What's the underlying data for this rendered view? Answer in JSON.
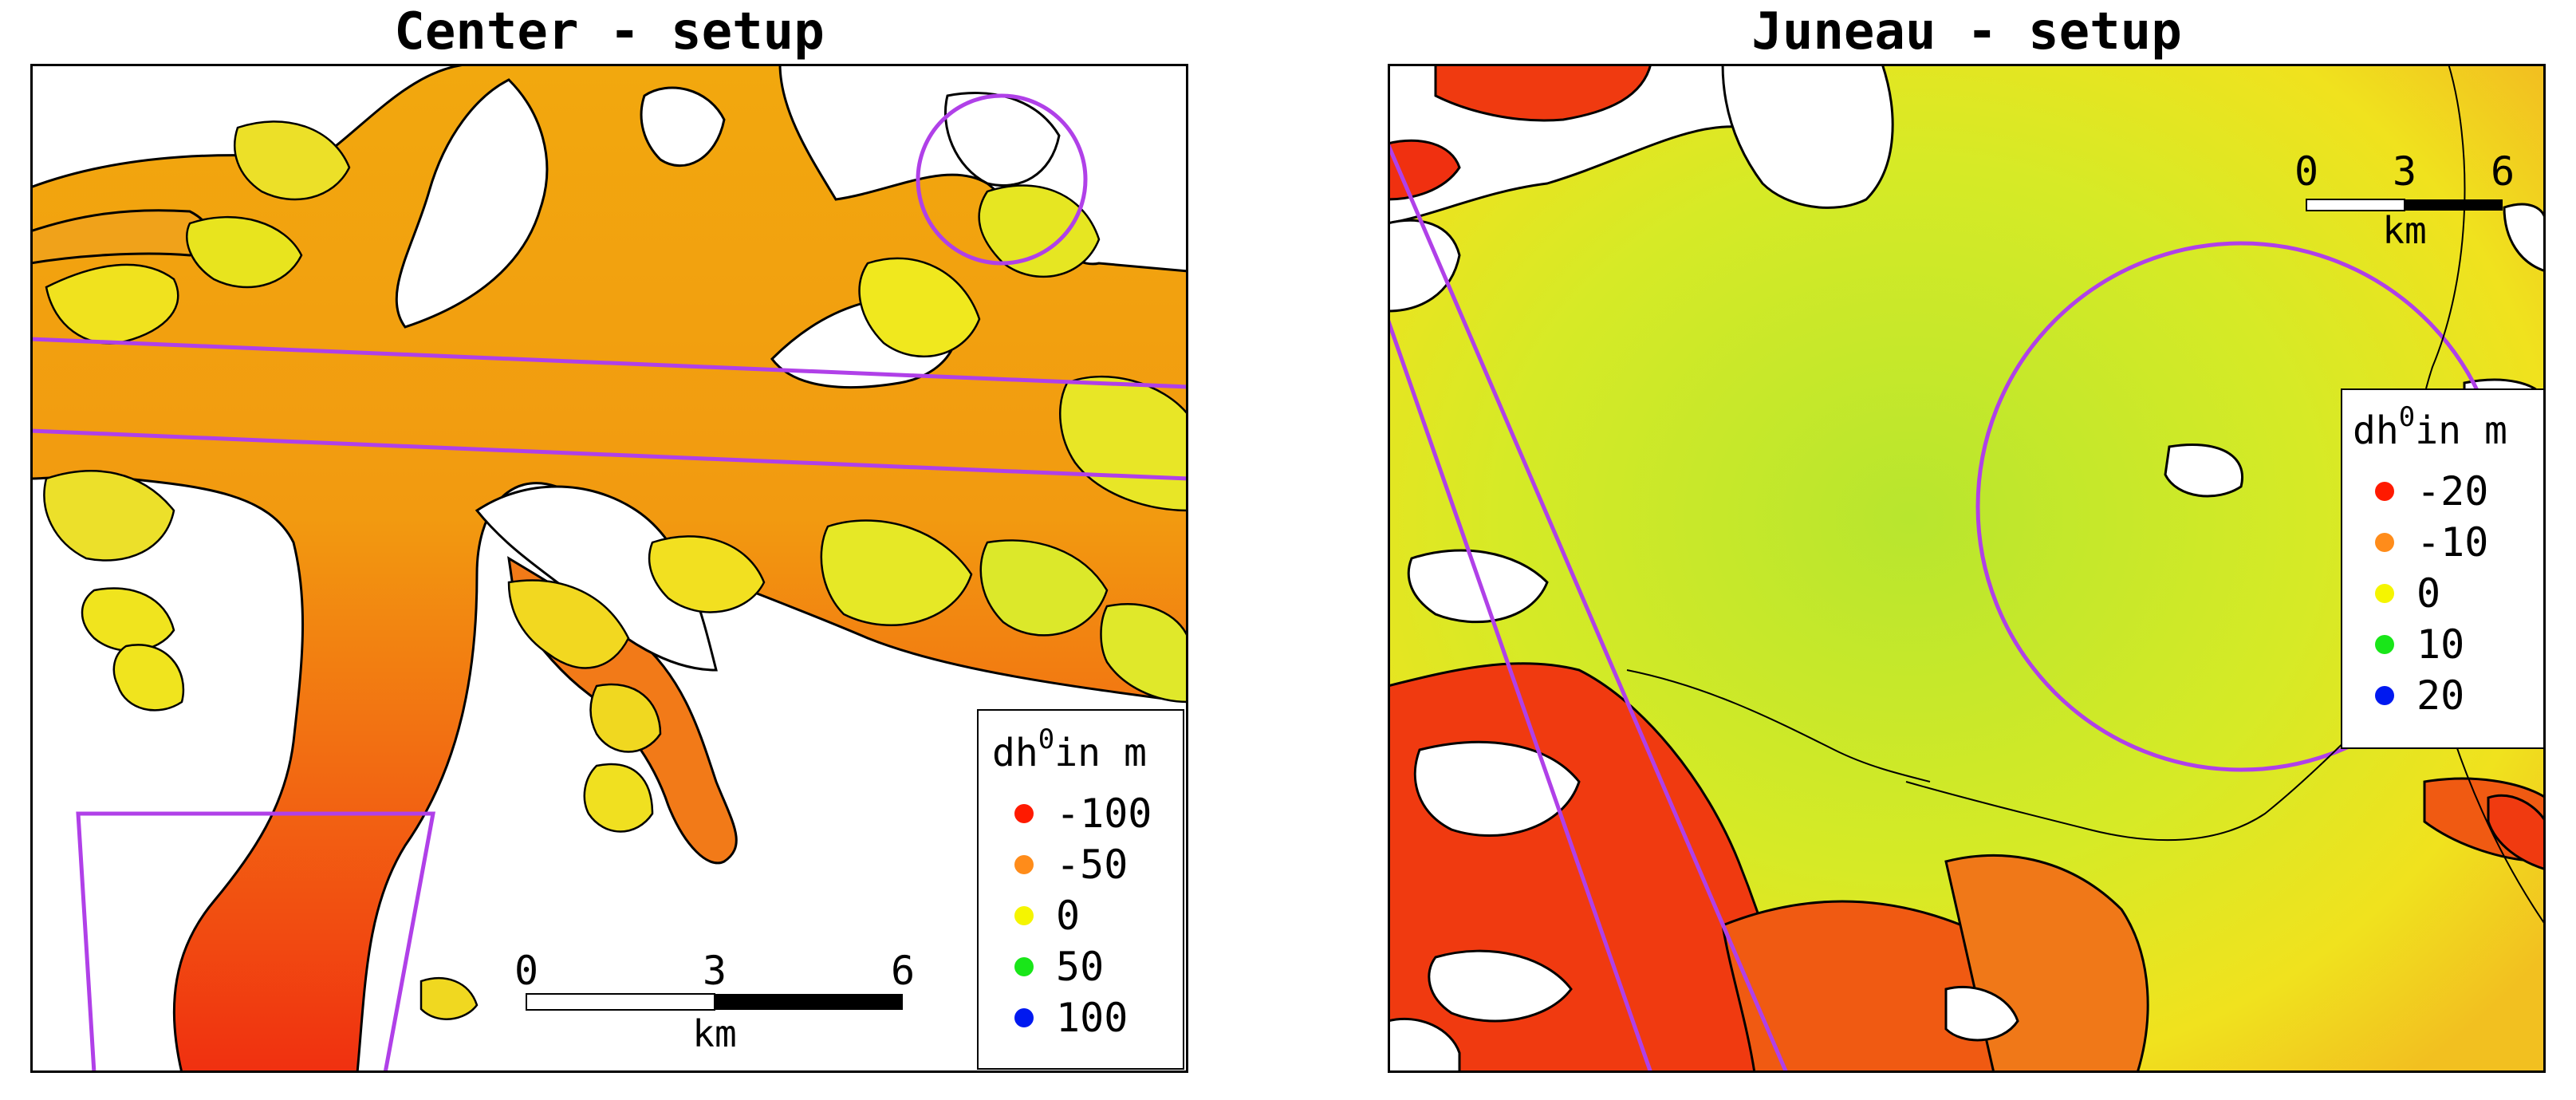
{
  "panels": [
    {
      "title": "Center - setup",
      "legend": {
        "title_prefix": "dh",
        "title_sup": "0",
        "title_suffix": "in m",
        "entries": [
          {
            "label": "-100",
            "color": "#ff1a00"
          },
          {
            "label": "-50",
            "color": "#ff8c1a"
          },
          {
            "label": "0",
            "color": "#f5f500"
          },
          {
            "label": "50",
            "color": "#19e619"
          },
          {
            "label": "100",
            "color": "#0019f0"
          }
        ]
      },
      "scalebar": {
        "ticks": [
          "0",
          "3",
          "6"
        ],
        "unit": "km"
      }
    },
    {
      "title": "Juneau - setup",
      "legend": {
        "title_prefix": "dh",
        "title_sup": "0",
        "title_suffix": "in m",
        "entries": [
          {
            "label": "-20",
            "color": "#ff1a00"
          },
          {
            "label": "-10",
            "color": "#ff8c1a"
          },
          {
            "label": "0",
            "color": "#f5f500"
          },
          {
            "label": "10",
            "color": "#19e619"
          },
          {
            "label": "20",
            "color": "#0019f0"
          }
        ]
      },
      "scalebar": {
        "ticks": [
          "0",
          "3",
          "6"
        ],
        "unit": "km"
      }
    }
  ],
  "colors": {
    "overlay": "#b040e8",
    "ice_orange": "#f2a50e",
    "ice_red": "#f03a10",
    "ice_yellow": "#f0e61e",
    "ice_green": "#b8e830",
    "outline": "#000000"
  }
}
